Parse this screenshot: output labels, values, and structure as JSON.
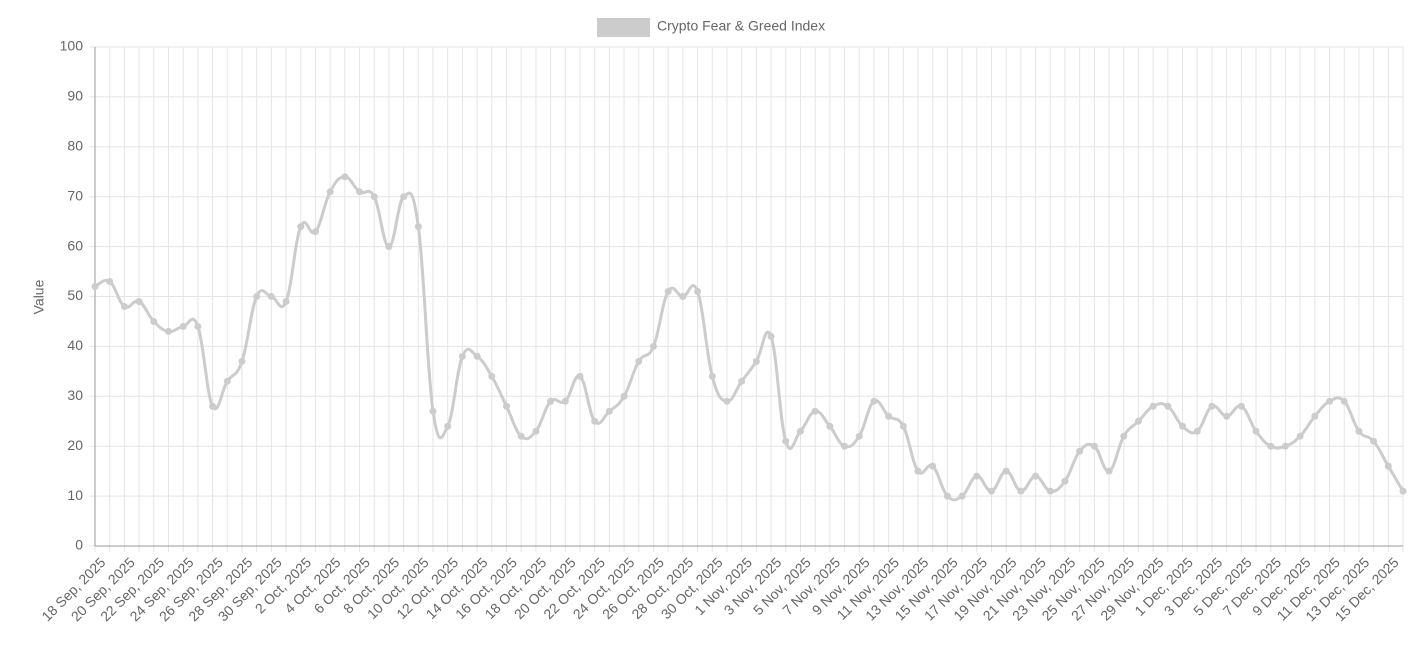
{
  "chart_data": {
    "type": "line",
    "y_label": "Value",
    "categories": [
      "18 Sep, 2025",
      null,
      "20 Sep, 2025",
      null,
      "22 Sep, 2025",
      null,
      "24 Sep, 2025",
      null,
      "26 Sep, 2025",
      null,
      "28 Sep, 2025",
      null,
      "30 Sep, 2025",
      null,
      "2 Oct, 2025",
      null,
      "4 Oct, 2025",
      null,
      "6 Oct, 2025",
      null,
      "8 Oct, 2025",
      null,
      "10 Oct, 2025",
      null,
      "12 Oct, 2025",
      null,
      "14 Oct, 2025",
      null,
      "16 Oct, 2025",
      null,
      "18 Oct, 2025",
      null,
      "20 Oct, 2025",
      null,
      "22 Oct, 2025",
      null,
      "24 Oct, 2025",
      null,
      "26 Oct, 2025",
      null,
      "28 Oct, 2025",
      null,
      "30 Oct, 2025",
      null,
      "1 Nov, 2025",
      null,
      "3 Nov, 2025",
      null,
      "5 Nov, 2025",
      null,
      "7 Nov, 2025",
      null,
      "9 Nov, 2025",
      null,
      "11 Nov, 2025",
      null,
      "13 Nov, 2025",
      null,
      "15 Nov, 2025",
      null,
      "17 Nov, 2025",
      null,
      "19 Nov, 2025",
      null,
      "21 Nov, 2025",
      null,
      "23 Nov, 2025",
      null,
      "25 Nov, 2025",
      null,
      "27 Nov, 2025",
      null,
      "29 Nov, 2025",
      null,
      "1 Dec, 2025",
      null,
      "3 Dec, 2025",
      null,
      "5 Dec, 2025",
      null,
      "7 Dec, 2025",
      null,
      "9 Dec, 2025",
      null,
      "11 Dec, 2025",
      null,
      "13 Dec, 2025",
      null,
      "15 Dec, 2025",
      null
    ],
    "series": [
      {
        "name": "Crypto Fear & Greed Index",
        "color": "#cccccc",
        "values": [
          52,
          53,
          48,
          49,
          45,
          43,
          44,
          44,
          28,
          33,
          37,
          50,
          50,
          49,
          64,
          63,
          71,
          74,
          71,
          70,
          60,
          70,
          64,
          27,
          24,
          38,
          38,
          34,
          28,
          22,
          23,
          29,
          29,
          34,
          25,
          27,
          30,
          37,
          40,
          51,
          50,
          51,
          34,
          29,
          33,
          37,
          42,
          21,
          23,
          27,
          24,
          20,
          22,
          29,
          26,
          24,
          15,
          16,
          10,
          10,
          14,
          11,
          15,
          11,
          14,
          11,
          13,
          19,
          20,
          15,
          22,
          25,
          28,
          28,
          24,
          23,
          28,
          26,
          28,
          23,
          20,
          20,
          22,
          26,
          29,
          29,
          23,
          21,
          16,
          11
        ]
      }
    ],
    "ylim": [
      0,
      100
    ],
    "yticks": [
      0,
      10,
      20,
      30,
      40,
      50,
      60,
      70,
      80,
      90,
      100
    ],
    "grid": true,
    "legend": "top"
  }
}
